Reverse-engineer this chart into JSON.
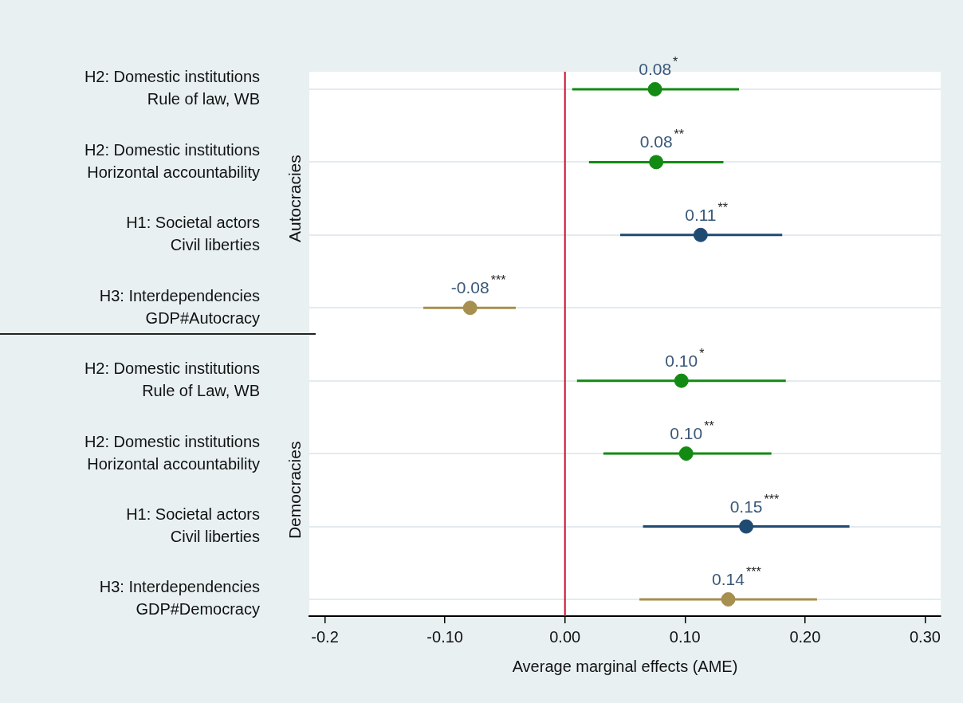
{
  "chart_data": {
    "type": "scatter",
    "orientation": "horizontal",
    "xlabel": "Average marginal effects (AME)",
    "categories": [
      "H2: Domestic institutions\nRule of law, WB",
      "H2: Domestic institutions\nHorizontal accountability",
      "H1: Societal actors\nCivil liberties",
      "H3: Interdependencies\nGDP#Autocracy",
      "H2: Domestic institutions\nRule of Law, WB",
      "H2: Domestic institutions\nHorizontal accountability",
      "H1: Societal actors\nCivil liberties",
      "H3: Interdependencies\nGDP#Democracy"
    ],
    "values": [
      0.075,
      0.076,
      0.113,
      -0.079,
      0.097,
      0.101,
      0.151,
      0.136
    ],
    "errors": [
      [
        0.006,
        0.145
      ],
      [
        0.02,
        0.132
      ],
      [
        0.046,
        0.181
      ],
      [
        -0.118,
        -0.041
      ],
      [
        0.01,
        0.184
      ],
      [
        0.032,
        0.172
      ],
      [
        0.065,
        0.237
      ],
      [
        0.062,
        0.21
      ]
    ],
    "colors": [
      "#138a13",
      "#138a13",
      "#1f4b73",
      "#a68f4f",
      "#138a13",
      "#138a13",
      "#1f4b73",
      "#a68f4f"
    ],
    "value_labels": [
      "0.08$^{*}$",
      "0.08$^{**}$",
      "0.11$^{**}$",
      "-0.08$^{***}$",
      "0.10$^{*}$",
      "0.10$^{**}$",
      "0.15$^{***}$",
      "0.14$^{***}$"
    ],
    "xlim": [
      -0.213,
      0.313
    ],
    "xticks": [
      -0.2,
      {
        "value": -0.1,
        "label": "-0.10"
      },
      {
        "value": 0,
        "label": "0.00"
      },
      {
        "value": 0.1,
        "label": "0.10"
      },
      {
        "value": 0.2,
        "label": "0.20"
      },
      {
        "value": 0.3,
        "label": "0.30"
      }
    ],
    "grid": "y",
    "marker": "circle",
    "legend": false,
    "ref_lines": [
      {
        "axis": "x",
        "value": 0,
        "color": "#c8102e"
      }
    ],
    "annotations": [
      "Autocracies",
      "Democracies"
    ]
  }
}
